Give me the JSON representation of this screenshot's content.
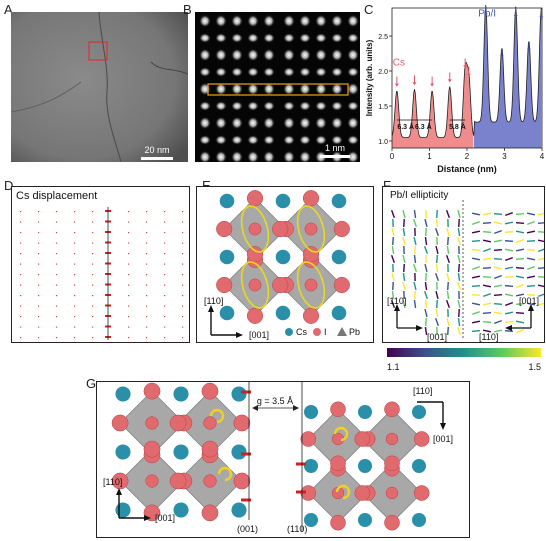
{
  "panels": {
    "A": {
      "letter": "A",
      "scalebar": "20 nm"
    },
    "B": {
      "letter": "B",
      "scalebar": "1 nm"
    },
    "C": {
      "letter": "C"
    },
    "D": {
      "letter": "D",
      "title": "Cs displacement"
    },
    "E": {
      "letter": "E",
      "axis_up": "[110]",
      "axis_right": "[001]",
      "legend": [
        {
          "label": "Cs",
          "color": "#2a8fa8"
        },
        {
          "label": "I",
          "color": "#e06a6e"
        },
        {
          "label": "Pb",
          "color": "#777777"
        }
      ]
    },
    "F": {
      "letter": "F",
      "title": "Pb/I ellipticity",
      "left_up": "[110]",
      "left_right": "[001]",
      "right_up": "[001]",
      "right_left": "[110]",
      "cbar_min": "1.1",
      "cbar_max": "1.5"
    },
    "G": {
      "letter": "G",
      "gap_label": "g = 3.5 Å",
      "left_up": "[110]",
      "left_right": "[001]",
      "right_top": "[110]",
      "right_down": "[001]",
      "plane_left": "(001)",
      "plane_right": "(110)"
    }
  },
  "chart_data": {
    "type": "line",
    "title": "",
    "xlabel": "Distance (nm)",
    "ylabel": "Intensity (arb. units)",
    "xlim": [
      0,
      4
    ],
    "ylim": [
      0.9,
      2.9
    ],
    "xticks": [
      "0",
      "1",
      "2",
      "3",
      "4"
    ],
    "yticks": [
      "1.0",
      "1.5",
      "2.0",
      "2.5"
    ],
    "series": [
      {
        "name": "Cs",
        "color": "#e05a6a",
        "peaks_x": [
          0.13,
          0.6,
          1.07,
          1.54,
          1.95,
          2.05
        ],
        "peaks_y": [
          1.72,
          1.74,
          1.72,
          1.78,
          1.98,
          1.86
        ]
      },
      {
        "name": "Pb/I",
        "color": "#4a56b0",
        "peaks_x": [
          2.5,
          2.93,
          3.3,
          3.65,
          3.98
        ],
        "peaks_y": [
          2.72,
          2.12,
          2.7,
          2.22,
          2.68
        ]
      }
    ],
    "annotations": [
      "6.3 Å",
      "6.3 Å",
      "5.8 Å"
    ]
  }
}
